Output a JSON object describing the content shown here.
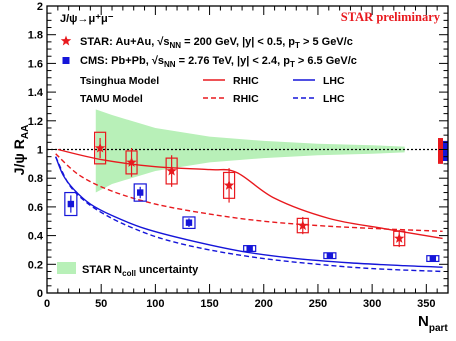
{
  "chart_data": {
    "type": "scatter",
    "badge": "STAR preliminary",
    "process": "J/ψ→μ⁺μ⁻",
    "xlabel_main": "N",
    "xlabel_sub": "part",
    "ylabel_main": "J/ψ  R",
    "ylabel_sub": "AA",
    "xlim": [
      0,
      370
    ],
    "ylim": [
      0,
      2
    ],
    "xticks": [
      0,
      50,
      100,
      150,
      200,
      250,
      300,
      350
    ],
    "yticks": [
      0,
      0.2,
      0.4,
      0.6,
      0.8,
      1,
      1.2,
      1.4,
      1.6,
      1.8,
      2
    ],
    "reference_line": 1,
    "legend": {
      "star": {
        "label": "STAR: Au+Au,",
        "sqrt": "√s",
        "nn": "NN",
        "energy": "= 200 GeV, |y| < 0.5, p",
        "t": "T",
        "cut": "> 5 GeV/c",
        "color": "#e8191e"
      },
      "cms": {
        "label": "CMS: Pb+Pb,",
        "sqrt": "√s",
        "nn": "NN",
        "energy": "= 2.76 TeV, |y| < 2.4, p",
        "t": "T",
        "cut": "> 6.5 GeV/c",
        "color": "#1515d9"
      },
      "tsinghua": "Tsinghua Model",
      "tamu": "TAMU Model",
      "rhic": "RHIC",
      "lhc": "LHC",
      "band_label": "STAR N",
      "band_sub": "coll",
      "band_suffix": " uncertainty"
    },
    "series": [
      {
        "name": "STAR: Au+Au",
        "color": "#e8191e",
        "marker": "star",
        "points": [
          {
            "x": 49,
            "y": 1.01,
            "stat": 0.07,
            "sys": 0.11
          },
          {
            "x": 78,
            "y": 0.91,
            "stat": 0.1,
            "sys": 0.08
          },
          {
            "x": 115,
            "y": 0.85,
            "stat": 0.11,
            "sys": 0.09
          },
          {
            "x": 168,
            "y": 0.75,
            "stat": 0.12,
            "sys": 0.09
          },
          {
            "x": 236,
            "y": 0.47,
            "stat": 0.06,
            "sys": 0.05
          },
          {
            "x": 325,
            "y": 0.38,
            "stat": 0.06,
            "sys": 0.05
          }
        ]
      },
      {
        "name": "CMS: Pb+Pb",
        "color": "#1515d9",
        "marker": "square",
        "points": [
          {
            "x": 22,
            "y": 0.62,
            "stat": 0.06,
            "sys": 0.08
          },
          {
            "x": 86,
            "y": 0.7,
            "stat": 0.04,
            "sys": 0.06
          },
          {
            "x": 131,
            "y": 0.49,
            "stat": 0.03,
            "sys": 0.04
          },
          {
            "x": 187,
            "y": 0.31,
            "stat": 0.01,
            "sys": 0.02
          },
          {
            "x": 261,
            "y": 0.26,
            "stat": 0.01,
            "sys": 0.02
          },
          {
            "x": 356,
            "y": 0.24,
            "stat": 0.01,
            "sys": 0.02
          }
        ]
      }
    ],
    "models": [
      {
        "name": "Tsinghua RHIC",
        "color": "#e8191e",
        "dash": false,
        "points": [
          [
            10,
            1.0
          ],
          [
            50,
            0.93
          ],
          [
            100,
            0.88
          ],
          [
            150,
            0.86
          ],
          [
            175,
            0.84
          ],
          [
            210,
            0.66
          ],
          [
            260,
            0.52
          ],
          [
            310,
            0.45
          ],
          [
            365,
            0.38
          ]
        ]
      },
      {
        "name": "TAMU RHIC",
        "color": "#e8191e",
        "dash": true,
        "points": [
          [
            8,
            0.97
          ],
          [
            30,
            0.82
          ],
          [
            60,
            0.71
          ],
          [
            100,
            0.62
          ],
          [
            150,
            0.55
          ],
          [
            200,
            0.5
          ],
          [
            250,
            0.47
          ],
          [
            300,
            0.45
          ],
          [
            365,
            0.43
          ]
        ]
      },
      {
        "name": "Tsinghua LHC",
        "color": "#1515d9",
        "dash": false,
        "points": [
          [
            8,
            0.95
          ],
          [
            15,
            0.82
          ],
          [
            25,
            0.72
          ],
          [
            40,
            0.62
          ],
          [
            60,
            0.54
          ],
          [
            90,
            0.45
          ],
          [
            130,
            0.37
          ],
          [
            180,
            0.29
          ],
          [
            230,
            0.24
          ],
          [
            280,
            0.21
          ],
          [
            330,
            0.19
          ],
          [
            365,
            0.18
          ]
        ]
      },
      {
        "name": "TAMU LHC",
        "color": "#1515d9",
        "dash": true,
        "points": [
          [
            8,
            0.95
          ],
          [
            20,
            0.76
          ],
          [
            35,
            0.64
          ],
          [
            55,
            0.54
          ],
          [
            80,
            0.45
          ],
          [
            110,
            0.37
          ],
          [
            150,
            0.3
          ],
          [
            200,
            0.24
          ],
          [
            250,
            0.2
          ],
          [
            300,
            0.17
          ],
          [
            365,
            0.15
          ]
        ]
      }
    ],
    "ncoll_band": {
      "color": "#b8f0b8",
      "upper": [
        [
          45,
          1.28
        ],
        [
          60,
          1.24
        ],
        [
          100,
          1.15
        ],
        [
          150,
          1.09
        ],
        [
          200,
          1.06
        ],
        [
          250,
          1.04
        ],
        [
          300,
          1.03
        ],
        [
          330,
          1.02
        ]
      ],
      "lower": [
        [
          45,
          0.7
        ],
        [
          60,
          0.76
        ],
        [
          100,
          0.85
        ],
        [
          150,
          0.91
        ],
        [
          200,
          0.94
        ],
        [
          250,
          0.96
        ],
        [
          300,
          0.97
        ],
        [
          330,
          0.98
        ]
      ]
    },
    "global_uncertainty": [
      {
        "color": "#e8191e",
        "lo": 0.9,
        "hi": 1.08
      },
      {
        "color": "#1515d9",
        "lo": 0.92,
        "hi": 1.06
      }
    ]
  }
}
